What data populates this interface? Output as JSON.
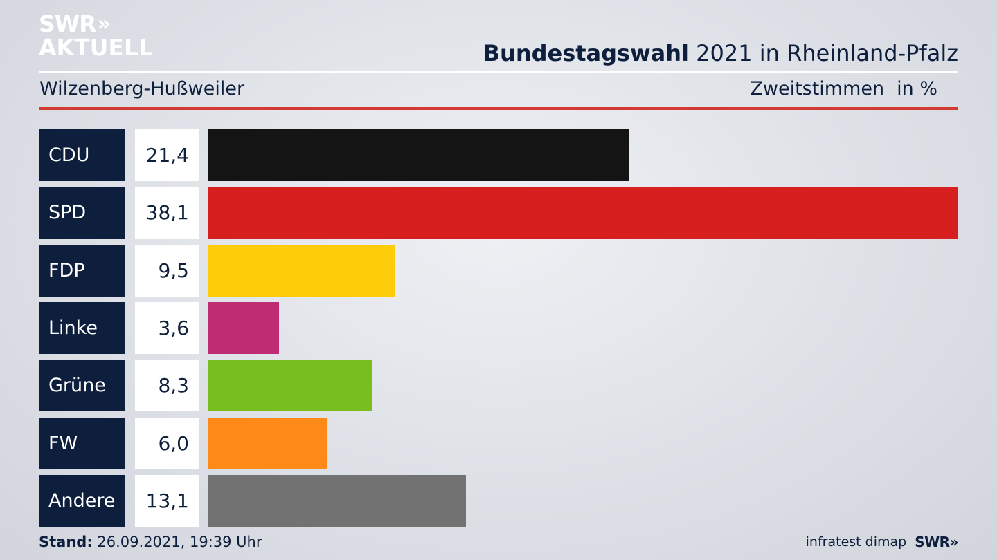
{
  "header": {
    "logo_line1": "SWR",
    "logo_chevrons": "»",
    "logo_line2": "AKTUELL",
    "title_bold": "Bundestagswahl",
    "title_rest": " 2021 in Rheinland-Pfalz",
    "subtitle": "Wilzenberg-Hußweiler",
    "measure": "Zweitstimmen",
    "unit": "in %"
  },
  "colors": {
    "label_bg": "#0d1f3c",
    "red_rule": "#d33a32"
  },
  "chart_data": {
    "type": "bar",
    "orientation": "horizontal",
    "categories": [
      "CDU",
      "SPD",
      "FDP",
      "Linke",
      "Grüne",
      "FW",
      "Andere"
    ],
    "values": [
      21.4,
      38.1,
      9.5,
      3.6,
      8.3,
      6.0,
      13.1
    ],
    "value_labels": [
      "21,4",
      "38,1",
      "9,5",
      "3,6",
      "8,3",
      "6,0",
      "13,1"
    ],
    "colors": [
      "#141414",
      "#d71f1f",
      "#ffcc0a",
      "#be2d73",
      "#78be1e",
      "#fd8a18",
      "#727272"
    ],
    "xlim": [
      0,
      38.1
    ],
    "grid": false
  },
  "footer": {
    "stand_label": "Stand:",
    "stand_value": " 26.09.2021, 19:39 Uhr",
    "source": "infratest dimap",
    "source_logo": "SWR»"
  }
}
